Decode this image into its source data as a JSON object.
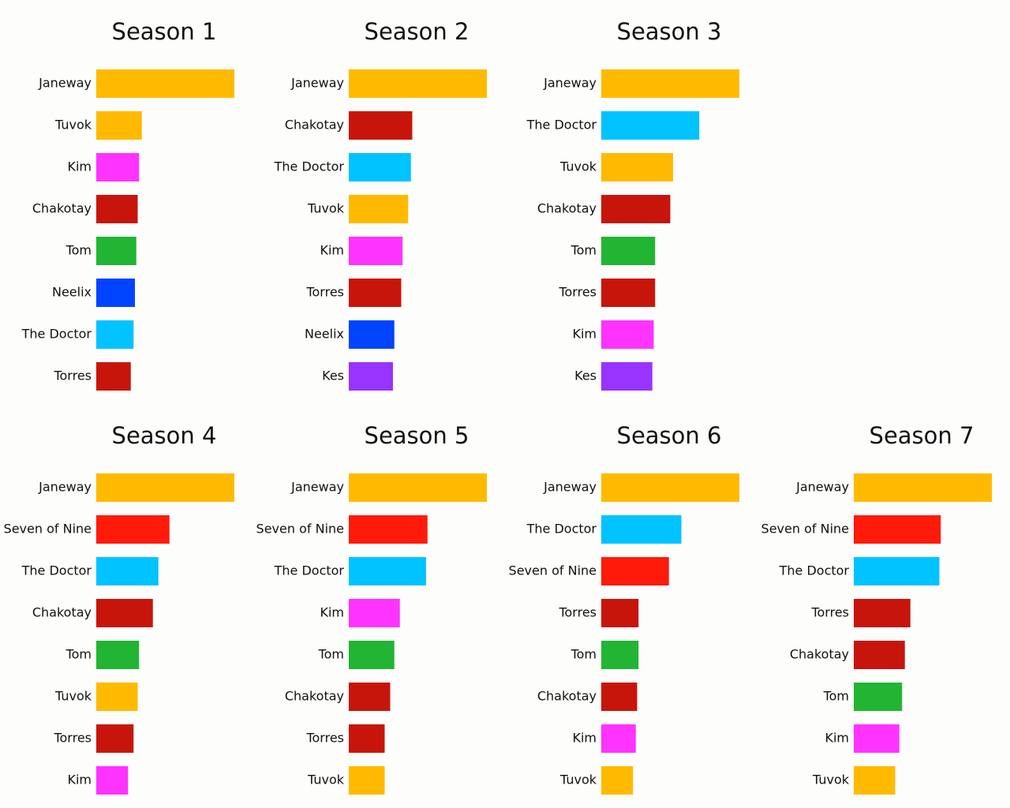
{
  "chart_data": [
    {
      "type": "bar",
      "title": "Season 1",
      "xlim": [
        0,
        100
      ],
      "categories": [
        "Janeway",
        "Tuvok",
        "Kim",
        "Chakotay",
        "Tom",
        "Neelix",
        "The Doctor",
        "Torres"
      ],
      "values": [
        100,
        33,
        31,
        30,
        29,
        28,
        27,
        25
      ],
      "colors": [
        "#ffba00",
        "#ffba00",
        "#ff33ff",
        "#c8150c",
        "#22b533",
        "#0044ff",
        "#00c3ff",
        "#c8150c"
      ]
    },
    {
      "type": "bar",
      "title": "Season 2",
      "xlim": [
        0,
        100
      ],
      "categories": [
        "Janeway",
        "Chakotay",
        "The Doctor",
        "Tuvok",
        "Kim",
        "Torres",
        "Neelix",
        "Kes"
      ],
      "values": [
        100,
        46,
        45,
        43,
        39,
        38,
        33,
        32
      ],
      "colors": [
        "#ffba00",
        "#c8150c",
        "#00c3ff",
        "#ffba00",
        "#ff33ff",
        "#c8150c",
        "#0044ff",
        "#9933ff"
      ]
    },
    {
      "type": "bar",
      "title": "Season 3",
      "xlim": [
        0,
        100
      ],
      "categories": [
        "Janeway",
        "The Doctor",
        "Tuvok",
        "Chakotay",
        "Tom",
        "Torres",
        "Kim",
        "Kes"
      ],
      "values": [
        100,
        71,
        52,
        50,
        39,
        39,
        38,
        37
      ],
      "colors": [
        "#ffba00",
        "#00c3ff",
        "#ffba00",
        "#c8150c",
        "#22b533",
        "#c8150c",
        "#ff33ff",
        "#9933ff"
      ]
    },
    {
      "type": "bar",
      "title": "Season 4",
      "xlim": [
        0,
        100
      ],
      "categories": [
        "Janeway",
        "Seven of Nine",
        "The Doctor",
        "Chakotay",
        "Tom",
        "Tuvok",
        "Torres",
        "Kim"
      ],
      "values": [
        100,
        53,
        45,
        41,
        31,
        30,
        27,
        23
      ],
      "colors": [
        "#ffba00",
        "#ff1a0a",
        "#00c3ff",
        "#c8150c",
        "#22b533",
        "#ffba00",
        "#c8150c",
        "#ff33ff"
      ]
    },
    {
      "type": "bar",
      "title": "Season 5",
      "xlim": [
        0,
        100
      ],
      "categories": [
        "Janeway",
        "Seven of Nine",
        "The Doctor",
        "Kim",
        "Tom",
        "Chakotay",
        "Torres",
        "Tuvok"
      ],
      "values": [
        100,
        57,
        56,
        37,
        33,
        30,
        26,
        26
      ],
      "colors": [
        "#ffba00",
        "#ff1a0a",
        "#00c3ff",
        "#ff33ff",
        "#22b533",
        "#c8150c",
        "#c8150c",
        "#ffba00"
      ]
    },
    {
      "type": "bar",
      "title": "Season 6",
      "xlim": [
        0,
        100
      ],
      "categories": [
        "Janeway",
        "The Doctor",
        "Seven of Nine",
        "Torres",
        "Tom",
        "Chakotay",
        "Kim",
        "Tuvok"
      ],
      "values": [
        100,
        58,
        49,
        27,
        27,
        26,
        25,
        23
      ],
      "colors": [
        "#ffba00",
        "#00c3ff",
        "#ff1a0a",
        "#c8150c",
        "#22b533",
        "#c8150c",
        "#ff33ff",
        "#ffba00"
      ]
    },
    {
      "type": "bar",
      "title": "Season 7",
      "xlim": [
        0,
        100
      ],
      "categories": [
        "Janeway",
        "Seven of Nine",
        "The Doctor",
        "Torres",
        "Chakotay",
        "Tom",
        "Kim",
        "Tuvok"
      ],
      "values": [
        100,
        63,
        62,
        41,
        37,
        35,
        33,
        30
      ],
      "colors": [
        "#ffba00",
        "#ff1a0a",
        "#00c3ff",
        "#c8150c",
        "#c8150c",
        "#22b533",
        "#ff33ff",
        "#ffba00"
      ]
    }
  ]
}
